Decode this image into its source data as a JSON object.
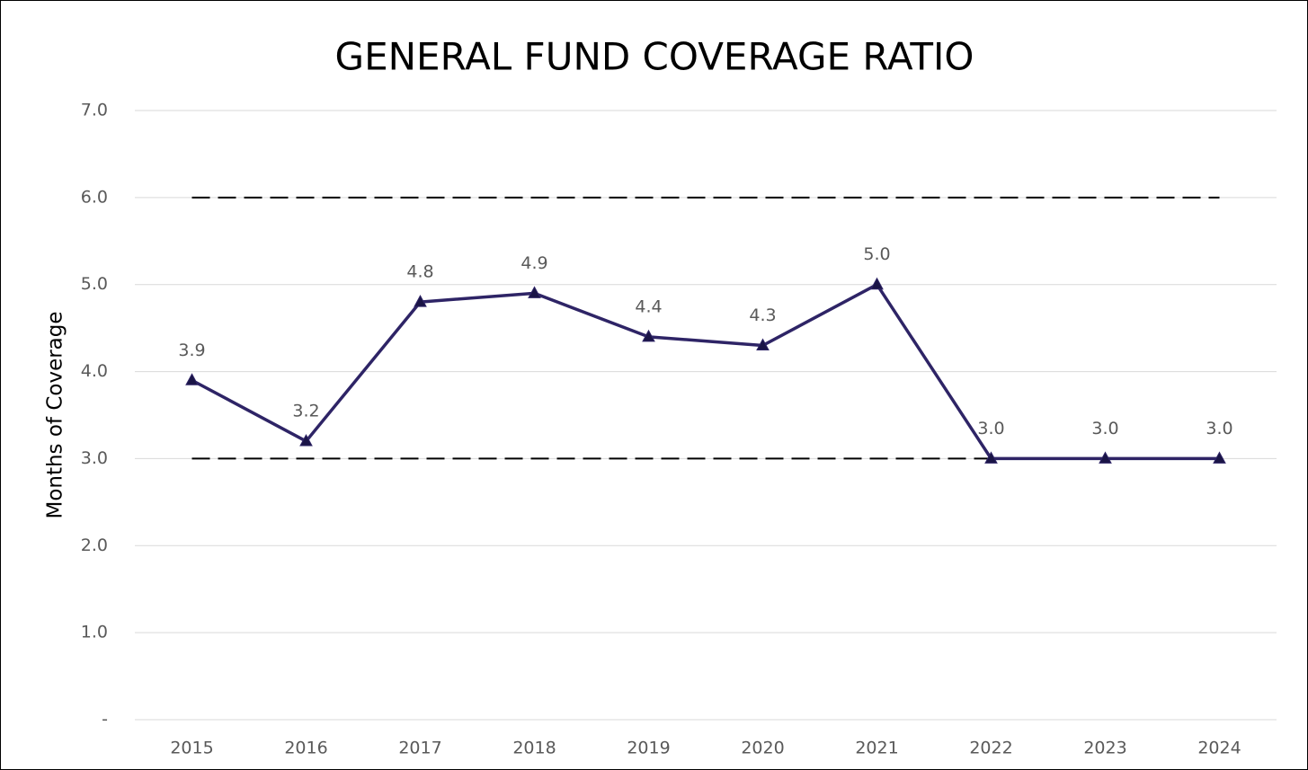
{
  "chart_data": {
    "type": "line",
    "title": "GENERAL FUND COVERAGE RATIO",
    "y_label": "Months of Coverage",
    "categories": [
      "2015",
      "2016",
      "2017",
      "2018",
      "2019",
      "2020",
      "2021",
      "2022",
      "2023",
      "2024"
    ],
    "series": [
      {
        "name": "General Fund Coverage Ratio",
        "color": "#2e2466",
        "values": [
          3.9,
          3.2,
          4.8,
          4.9,
          4.4,
          4.3,
          5.0,
          3.0,
          3.0,
          3.0
        ],
        "value_labels": [
          "3.9",
          "3.2",
          "4.8",
          "4.9",
          "4.4",
          "4.3",
          "5.0",
          "3.0",
          "3.0",
          "3.0"
        ]
      }
    ],
    "reference_lines": [
      6,
      3
    ],
    "ylim": [
      0,
      7
    ],
    "yticks": [
      {
        "value": 0,
        "label": "-"
      },
      {
        "value": 1,
        "label": "1.0"
      },
      {
        "value": 2,
        "label": "2.0"
      },
      {
        "value": 3,
        "label": "3.0"
      },
      {
        "value": 4,
        "label": "4.0"
      },
      {
        "value": 5,
        "label": "5.0"
      },
      {
        "value": 6,
        "label": "6.0"
      },
      {
        "value": 7,
        "label": "7.0"
      }
    ],
    "grid": true
  }
}
